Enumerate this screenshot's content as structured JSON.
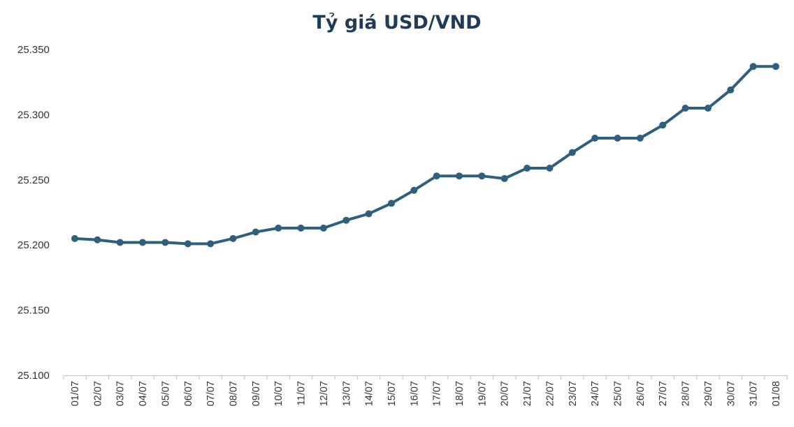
{
  "chart_data": {
    "type": "line",
    "title": "Tỷ giá USD/VND",
    "xlabel": "",
    "ylabel": "",
    "ylim": [
      25100,
      25350
    ],
    "yticks": [
      25100,
      25150,
      25200,
      25250,
      25300,
      25350
    ],
    "ytick_labels": [
      "25.100",
      "25.150",
      "25.200",
      "25.250",
      "25.300",
      "25.350"
    ],
    "grid": false,
    "legend": "none",
    "categories": [
      "01/07",
      "02/07",
      "03/07",
      "04/07",
      "05/07",
      "06/07",
      "07/07",
      "08/07",
      "09/07",
      "10/07",
      "11/07",
      "12/07",
      "13/07",
      "14/07",
      "15/07",
      "16/07",
      "17/07",
      "18/07",
      "19/07",
      "20/07",
      "21/07",
      "22/07",
      "23/07",
      "24/07",
      "25/07",
      "26/07",
      "27/07",
      "28/07",
      "29/07",
      "30/07",
      "31/07",
      "01/08"
    ],
    "series": [
      {
        "color": "#2e5f7e",
        "values": [
          25205,
          25204,
          25202,
          25202,
          25202,
          25201,
          25201,
          25205,
          25210,
          25213,
          25213,
          25213,
          25219,
          25224,
          25232,
          25242,
          25253,
          25253,
          25253,
          25251,
          25259,
          25259,
          25271,
          25282,
          25282,
          25282,
          25292,
          25305,
          25305,
          25319,
          25337,
          25337
        ]
      }
    ]
  }
}
